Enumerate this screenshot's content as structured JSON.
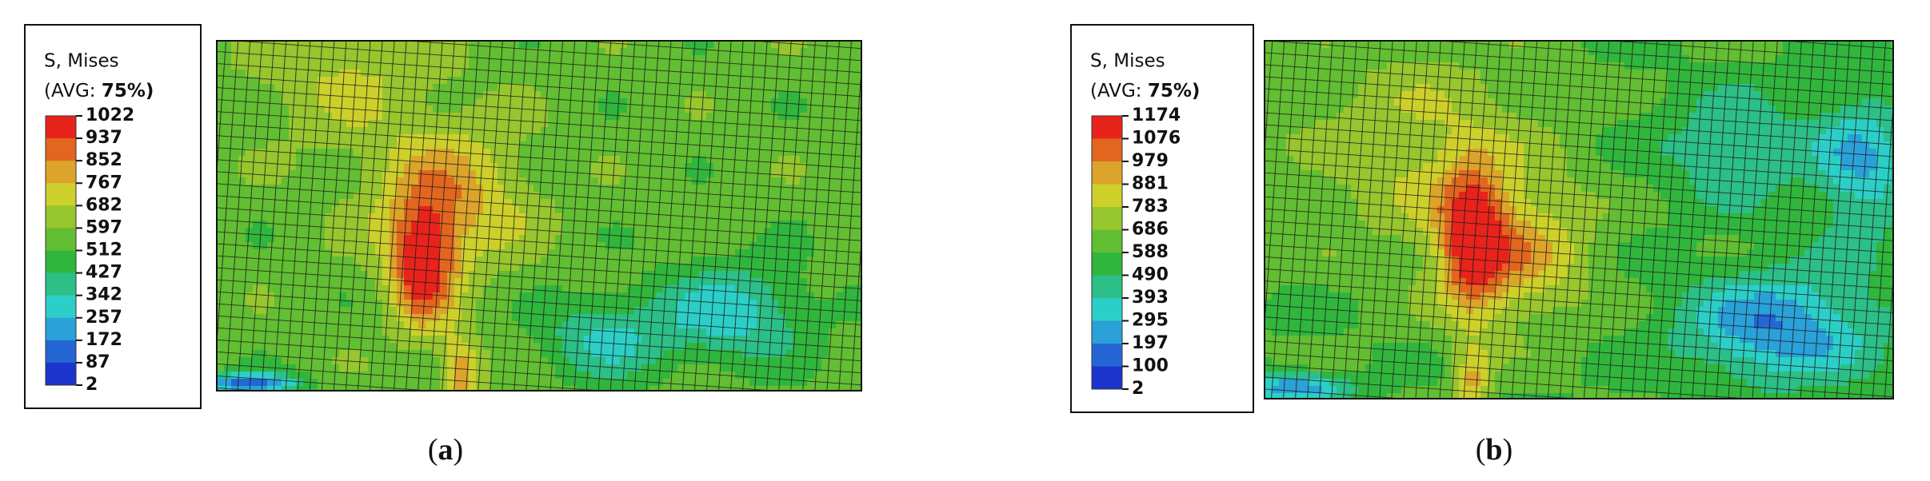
{
  "colormap": [
    "#e8231c",
    "#e2661f",
    "#dca42a",
    "#cdd02b",
    "#97c62e",
    "#62be32",
    "#30b63d",
    "#2cbf87",
    "#2ccfc7",
    "#2aa1d9",
    "#2467d4",
    "#1c34cc"
  ],
  "panels": [
    {
      "legend": {
        "title": "S, Mises",
        "avg_prefix": "(AVG: ",
        "avg_value": "75%)",
        "levels": [
          1022,
          937,
          852,
          767,
          682,
          597,
          512,
          427,
          342,
          257,
          172,
          87,
          2
        ]
      },
      "caption": {
        "open": "(",
        "label": "a",
        "close": ")"
      }
    },
    {
      "legend": {
        "title": "S, Mises",
        "avg_prefix": "(AVG: ",
        "avg_value": "75%)",
        "levels": [
          1174,
          1076,
          979,
          881,
          783,
          686,
          588,
          490,
          393,
          295,
          197,
          100,
          2
        ]
      },
      "caption": {
        "open": "(",
        "label": "b",
        "close": ")"
      }
    }
  ]
}
